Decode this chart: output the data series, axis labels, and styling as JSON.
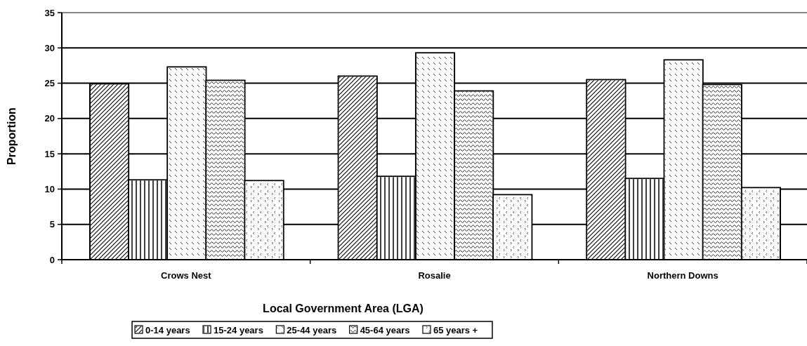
{
  "chart_data": {
    "type": "bar",
    "xlabel": "Local Government Area (LGA)",
    "ylabel": "Proportion",
    "categories": [
      "Crows Nest",
      "Rosalie",
      "Northern Downs"
    ],
    "series": [
      {
        "name": "0-14 years",
        "color": "#ffffff",
        "values": [
          24.9,
          26.0,
          25.5
        ]
      },
      {
        "name": "15-24 years",
        "color": "#ffffff",
        "values": [
          11.3,
          11.8,
          11.5
        ]
      },
      {
        "name": "25-44 years",
        "color": "#ffffff",
        "values": [
          27.3,
          29.3,
          28.3
        ]
      },
      {
        "name": "45-64 years",
        "color": "#ffffff",
        "values": [
          25.4,
          23.9,
          24.8
        ]
      },
      {
        "name": "65 years +",
        "color": "#ffffff",
        "values": [
          11.2,
          9.2,
          10.2
        ]
      }
    ],
    "ylim": [
      0,
      35
    ],
    "yticks": [
      0,
      5,
      10,
      15,
      20,
      25,
      30,
      35
    ],
    "grid": "y",
    "legend": "bottom"
  }
}
